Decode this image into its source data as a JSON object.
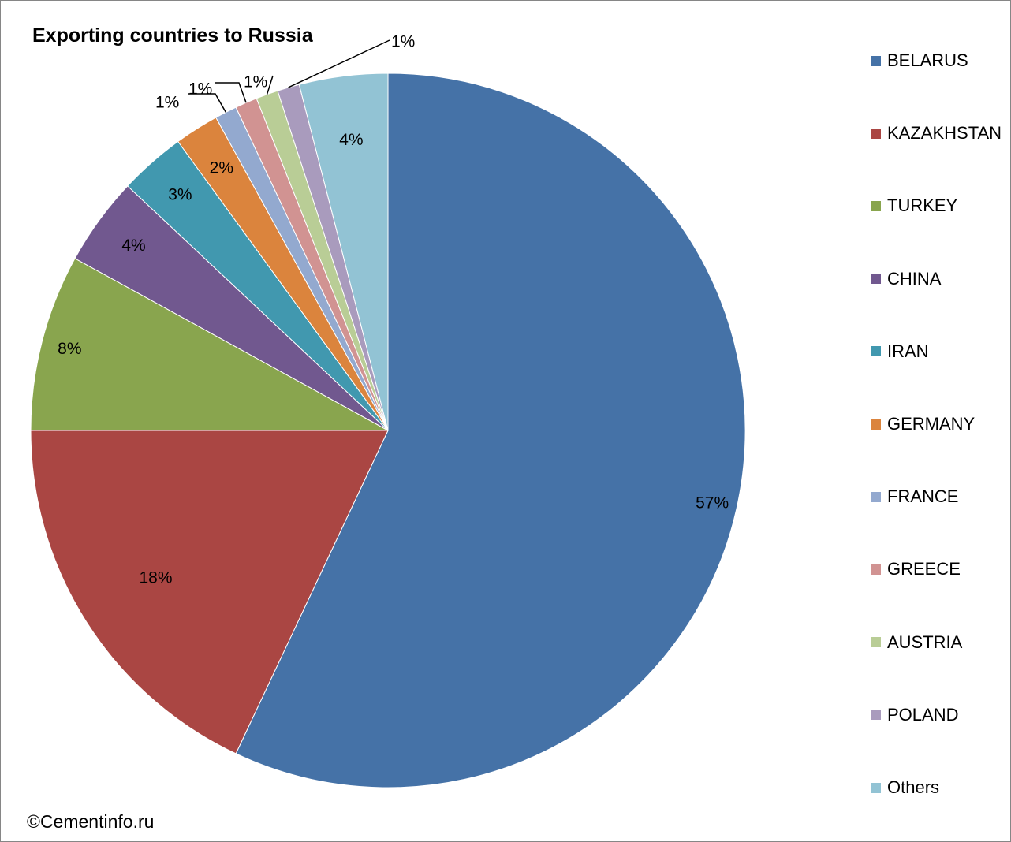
{
  "chart_data": {
    "type": "pie",
    "title": "Exporting countries to Russia",
    "legend_position": "right",
    "slices": [
      {
        "name": "BELARUS",
        "value": 57,
        "label": "57%",
        "color": "#4572A7"
      },
      {
        "name": "KAZAKHSTAN",
        "value": 18,
        "label": "18%",
        "color": "#AA4643"
      },
      {
        "name": "TURKEY",
        "value": 8,
        "label": "8%",
        "color": "#89A54E"
      },
      {
        "name": "CHINA",
        "value": 4,
        "label": "4%",
        "color": "#71588F"
      },
      {
        "name": "IRAN",
        "value": 3,
        "label": "3%",
        "color": "#4198AF"
      },
      {
        "name": "GERMANY",
        "value": 2,
        "label": "2%",
        "color": "#DB843D"
      },
      {
        "name": "FRANCE",
        "value": 1,
        "label": "1%",
        "color": "#93A9CF"
      },
      {
        "name": "GREECE",
        "value": 1,
        "label": "1%",
        "color": "#D19392"
      },
      {
        "name": "AUSTRIA",
        "value": 1,
        "label": "1%",
        "color": "#B9CD96"
      },
      {
        "name": "POLAND",
        "value": 1,
        "label": "1%",
        "color": "#A99BBD"
      },
      {
        "name": "Others",
        "value": 4,
        "label": "4%",
        "color": "#92C3D4"
      }
    ]
  },
  "credit": "©Cementinfo.ru"
}
